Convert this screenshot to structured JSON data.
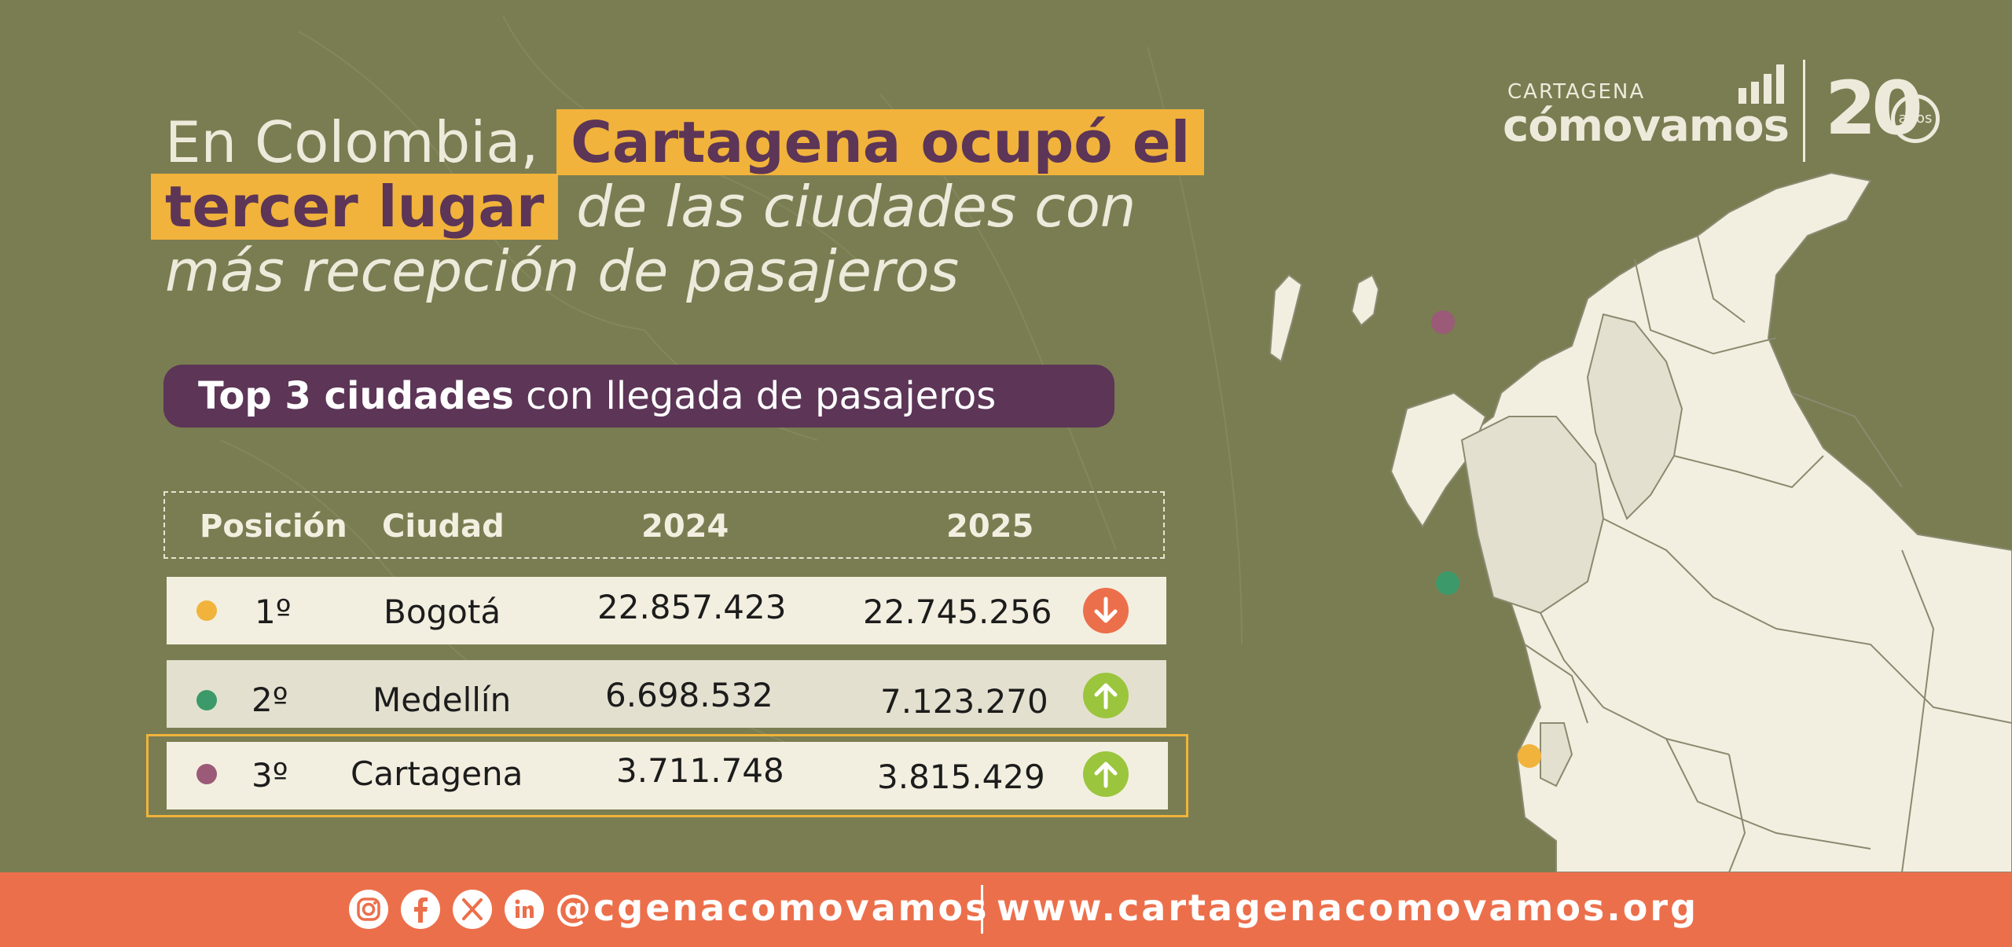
{
  "headline": {
    "lead": "En Colombia, ",
    "highlight_1": "Cartagena ocupó el",
    "highlight_2": "tercer lugar",
    "rest_1": " de las ciudades con",
    "rest_2": "más recepción de pasajeros"
  },
  "subtitle": {
    "bold": "Top 3 ciudades",
    "rest": " con llegada de pasajeros"
  },
  "table": {
    "headers": [
      "Posición",
      "Ciudad",
      "2024",
      "2025"
    ],
    "rows": [
      {
        "position": "1º",
        "city": "Bogotá",
        "y2024": "22.857.423",
        "y2025": "22.745.256",
        "trend": "down",
        "dot_color": "#f1b33b"
      },
      {
        "position": "2º",
        "city": "Medellín",
        "y2024": "6.698.532",
        "y2025": "7.123.270",
        "trend": "up",
        "dot_color": "#3c9a6a"
      },
      {
        "position": "3º",
        "city": "Cartagena",
        "y2024": "3.711.748",
        "y2025": "3.815.429",
        "trend": "up",
        "dot_color": "#9b5a77"
      }
    ]
  },
  "logo": {
    "small": "CARTAGENA",
    "big": "cómovamos",
    "number": "20",
    "anos": "años"
  },
  "footer": {
    "handle": "@cgenacomovamos",
    "url": "www.cartagenacomovamos.org",
    "icons": [
      "instagram-icon",
      "facebook-icon",
      "x-icon",
      "linkedin-icon"
    ]
  },
  "colors": {
    "background": "#7a7d52",
    "accent_yellow": "#f1b33b",
    "purple": "#5c3557",
    "footer": "#ec6f4b",
    "arrow_down": "#ec6f4b",
    "arrow_up": "#9bc53d"
  }
}
